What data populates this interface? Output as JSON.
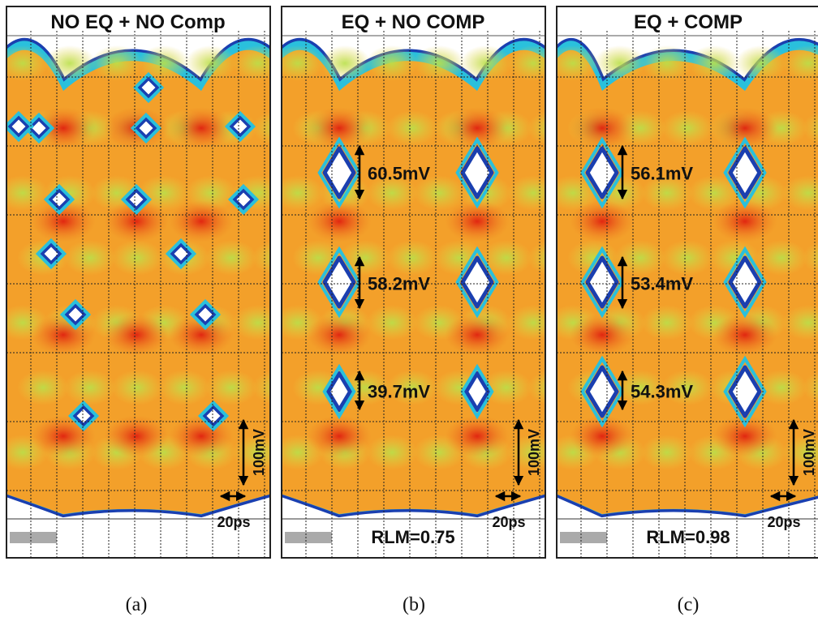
{
  "panels": [
    {
      "title": "NO EQ + NO Comp",
      "caption": "(a)",
      "voltage_scale": "100mV",
      "time_scale": "20ps"
    },
    {
      "title": "EQ + NO COMP",
      "caption": "(b)",
      "eye_heights": [
        "60.5mV",
        "58.2mV",
        "39.7mV"
      ],
      "rlm": "RLM=0.75",
      "voltage_scale": "100mV",
      "time_scale": "20ps"
    },
    {
      "title": "EQ + COMP",
      "caption": "(c)",
      "eye_heights": [
        "56.1mV",
        "53.4mV",
        "54.3mV"
      ],
      "rlm": "RLM=0.98",
      "voltage_scale": "100mV",
      "time_scale": "20ps"
    }
  ]
}
